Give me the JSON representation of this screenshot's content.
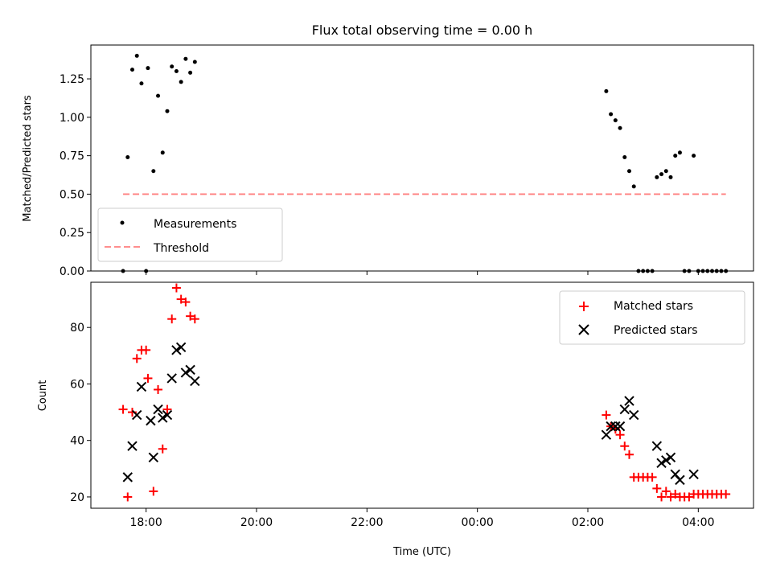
{
  "chart_data": [
    {
      "type": "scatter",
      "title": "Flux total observing time = 0.00 h",
      "xlabel": "",
      "ylabel": "Matched/Predicted stars",
      "xlim": [
        "17:00",
        "05:00"
      ],
      "ylim": [
        0,
        1.47
      ],
      "yticks": [
        0.0,
        0.25,
        0.5,
        0.75,
        1.0,
        1.25
      ],
      "ytick_labels": [
        "0.00",
        "0.25",
        "0.50",
        "0.75",
        "1.00",
        "1.25"
      ],
      "legend_position": "lower-left",
      "threshold": {
        "name": "Threshold",
        "y": 0.5,
        "x_range": [
          "17:35",
          "04:30"
        ],
        "color": "#ff7f7f",
        "style": "dashed"
      },
      "series": [
        {
          "name": "Measurements",
          "marker": "dot",
          "color": "#000000",
          "points": [
            [
              "17:35",
              0.0
            ],
            [
              "17:40",
              0.74
            ],
            [
              "17:45",
              1.31
            ],
            [
              "17:50",
              1.4
            ],
            [
              "17:55",
              1.22
            ],
            [
              "18:00",
              0.0
            ],
            [
              "18:02",
              1.32
            ],
            [
              "18:08",
              0.65
            ],
            [
              "18:13",
              1.14
            ],
            [
              "18:18",
              0.77
            ],
            [
              "18:23",
              1.04
            ],
            [
              "18:28",
              1.33
            ],
            [
              "18:33",
              1.3
            ],
            [
              "18:38",
              1.23
            ],
            [
              "18:43",
              1.38
            ],
            [
              "18:48",
              1.29
            ],
            [
              "18:53",
              1.36
            ],
            [
              "02:20",
              1.17
            ],
            [
              "02:25",
              1.02
            ],
            [
              "02:30",
              0.98
            ],
            [
              "02:35",
              0.93
            ],
            [
              "02:40",
              0.74
            ],
            [
              "02:45",
              0.65
            ],
            [
              "02:50",
              0.55
            ],
            [
              "02:55",
              0.0
            ],
            [
              "03:00",
              0.0
            ],
            [
              "03:05",
              0.0
            ],
            [
              "03:10",
              0.0
            ],
            [
              "03:15",
              0.61
            ],
            [
              "03:20",
              0.63
            ],
            [
              "03:25",
              0.65
            ],
            [
              "03:30",
              0.61
            ],
            [
              "03:35",
              0.75
            ],
            [
              "03:40",
              0.77
            ],
            [
              "03:45",
              0.0
            ],
            [
              "03:50",
              0.0
            ],
            [
              "03:55",
              0.75
            ],
            [
              "04:00",
              0.0
            ],
            [
              "04:05",
              0.0
            ],
            [
              "04:10",
              0.0
            ],
            [
              "04:15",
              0.0
            ],
            [
              "04:20",
              0.0
            ],
            [
              "04:25",
              0.0
            ],
            [
              "04:30",
              0.0
            ]
          ]
        }
      ]
    },
    {
      "type": "scatter",
      "title": "",
      "xlabel": "Time (UTC)",
      "ylabel": "Count",
      "xlim": [
        "17:00",
        "05:00"
      ],
      "ylim": [
        16,
        96
      ],
      "xticks": [
        "18:00",
        "20:00",
        "22:00",
        "00:00",
        "02:00",
        "04:00"
      ],
      "yticks": [
        20,
        40,
        60,
        80
      ],
      "legend_position": "upper-right",
      "series": [
        {
          "name": "Matched stars",
          "marker": "plus",
          "color": "#ff0000",
          "points": [
            [
              "17:35",
              51
            ],
            [
              "17:40",
              20
            ],
            [
              "17:45",
              50
            ],
            [
              "17:50",
              69
            ],
            [
              "17:55",
              72
            ],
            [
              "18:00",
              72
            ],
            [
              "18:02",
              62
            ],
            [
              "18:08",
              22
            ],
            [
              "18:13",
              58
            ],
            [
              "18:18",
              37
            ],
            [
              "18:23",
              51
            ],
            [
              "18:28",
              83
            ],
            [
              "18:33",
              94
            ],
            [
              "18:38",
              90
            ],
            [
              "18:43",
              89
            ],
            [
              "18:48",
              84
            ],
            [
              "18:53",
              83
            ],
            [
              "02:20",
              49
            ],
            [
              "02:25",
              45
            ],
            [
              "02:30",
              44
            ],
            [
              "02:35",
              42
            ],
            [
              "02:40",
              38
            ],
            [
              "02:45",
              35
            ],
            [
              "02:50",
              27
            ],
            [
              "02:55",
              27
            ],
            [
              "03:00",
              27
            ],
            [
              "03:05",
              27
            ],
            [
              "03:10",
              27
            ],
            [
              "03:15",
              23
            ],
            [
              "03:20",
              20
            ],
            [
              "03:25",
              22
            ],
            [
              "03:30",
              20
            ],
            [
              "03:35",
              21
            ],
            [
              "03:40",
              20
            ],
            [
              "03:45",
              20
            ],
            [
              "03:50",
              20
            ],
            [
              "03:55",
              21
            ],
            [
              "04:00",
              21
            ],
            [
              "04:05",
              21
            ],
            [
              "04:10",
              21
            ],
            [
              "04:15",
              21
            ],
            [
              "04:20",
              21
            ],
            [
              "04:25",
              21
            ],
            [
              "04:30",
              21
            ]
          ]
        },
        {
          "name": "Predicted stars",
          "marker": "x",
          "color": "#000000",
          "points": [
            [
              "17:40",
              27
            ],
            [
              "17:45",
              38
            ],
            [
              "17:50",
              49
            ],
            [
              "17:55",
              59
            ],
            [
              "18:05",
              47
            ],
            [
              "18:08",
              34
            ],
            [
              "18:13",
              51
            ],
            [
              "18:18",
              48
            ],
            [
              "18:23",
              49
            ],
            [
              "18:28",
              62
            ],
            [
              "18:33",
              72
            ],
            [
              "18:38",
              73
            ],
            [
              "18:43",
              64
            ],
            [
              "18:48",
              65
            ],
            [
              "18:53",
              61
            ],
            [
              "02:20",
              42
            ],
            [
              "02:25",
              45
            ],
            [
              "02:30",
              45
            ],
            [
              "02:35",
              45
            ],
            [
              "02:40",
              51
            ],
            [
              "02:45",
              54
            ],
            [
              "02:50",
              49
            ],
            [
              "03:15",
              38
            ],
            [
              "03:20",
              32
            ],
            [
              "03:25",
              33
            ],
            [
              "03:30",
              34
            ],
            [
              "03:35",
              28
            ],
            [
              "03:40",
              26
            ],
            [
              "03:55",
              28
            ]
          ]
        }
      ]
    }
  ]
}
